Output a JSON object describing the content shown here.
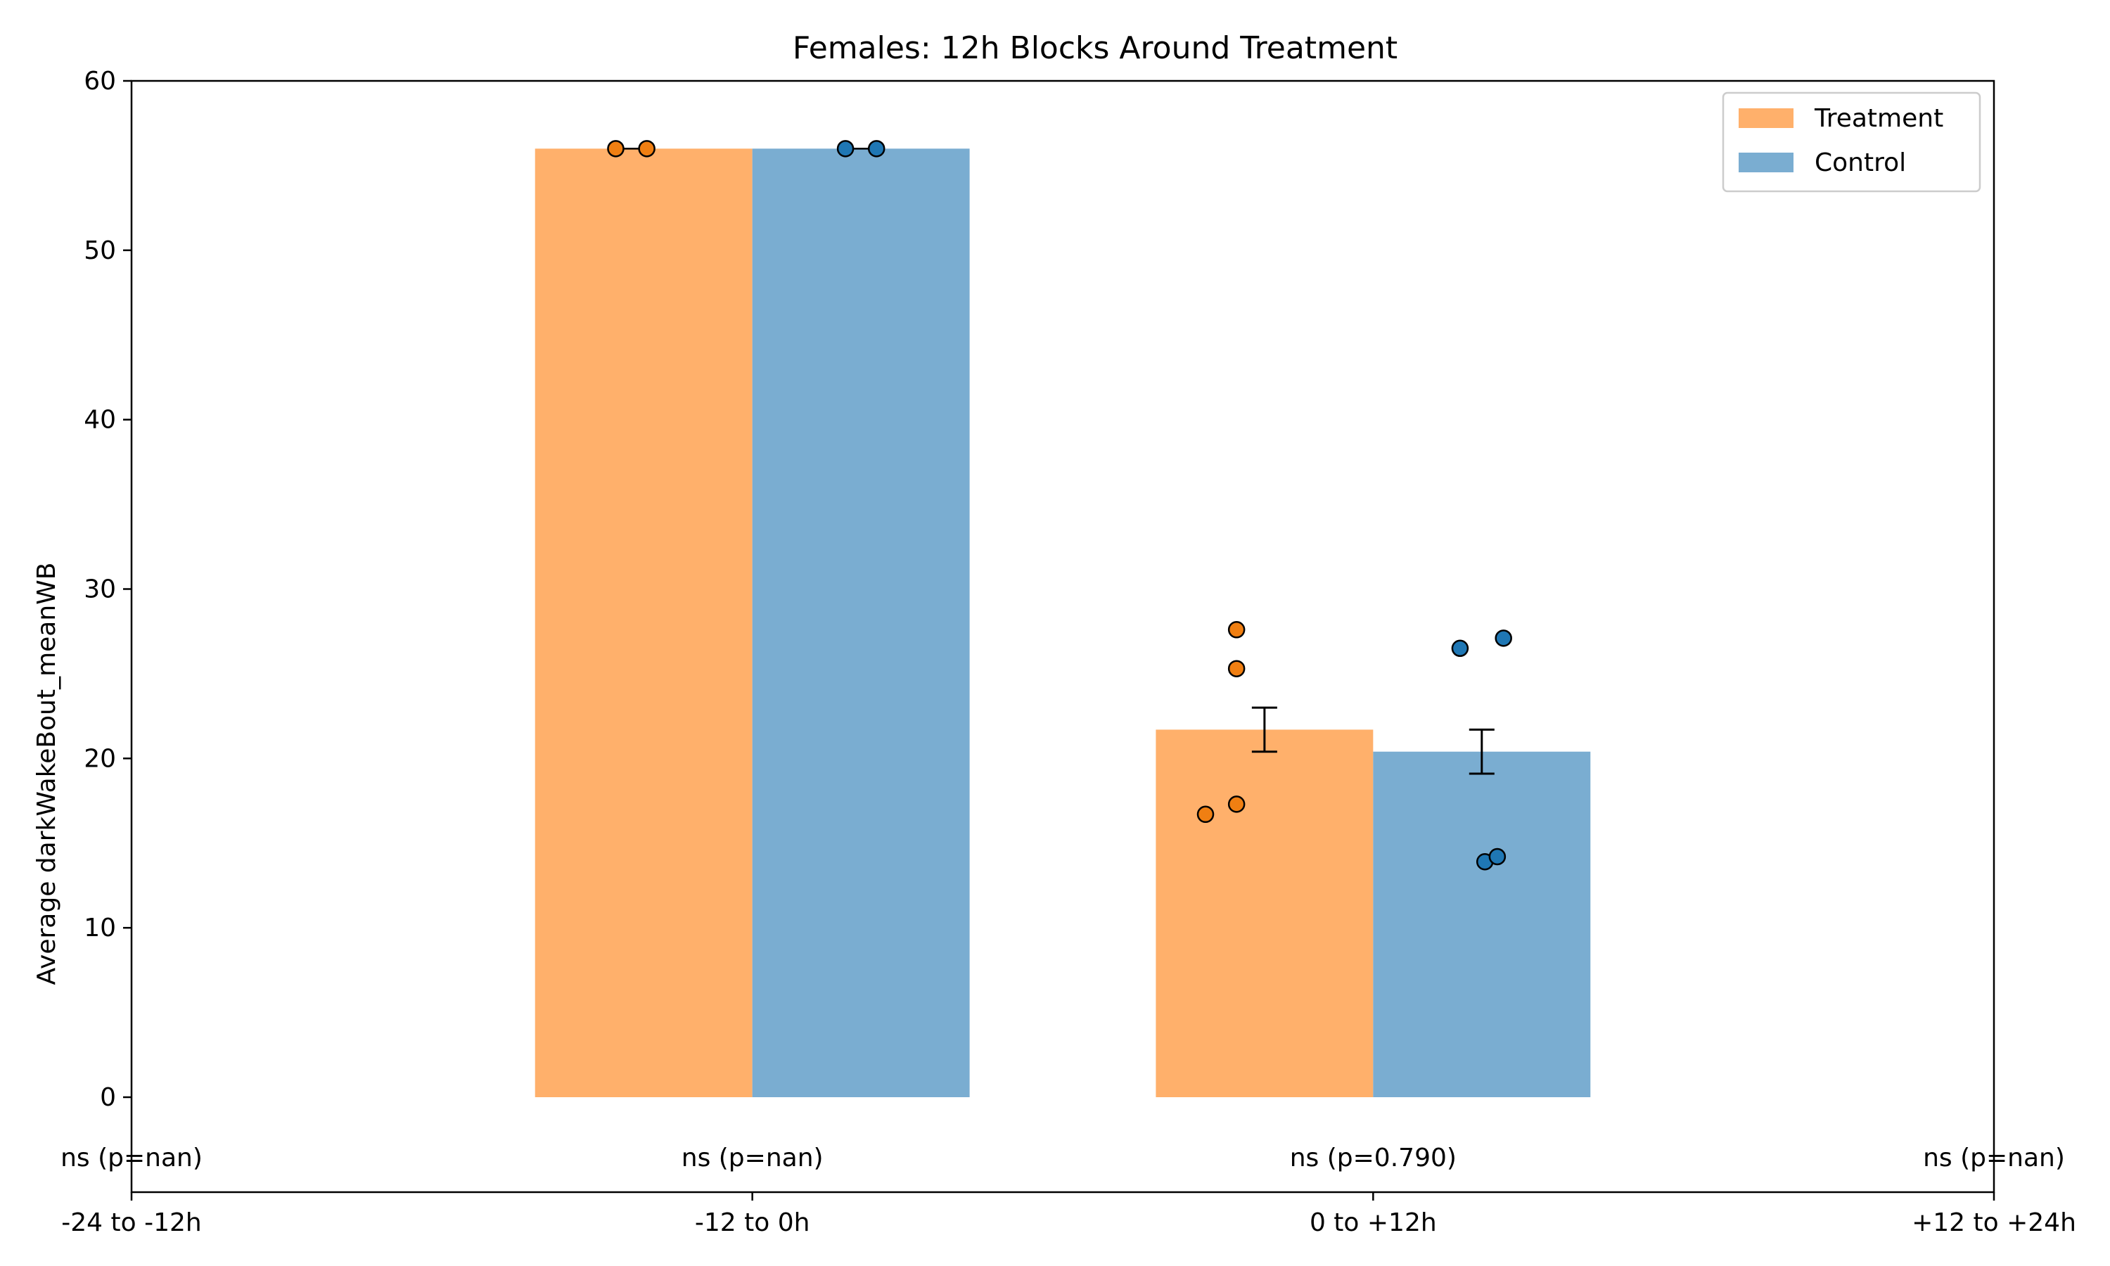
{
  "chart_data": {
    "type": "bar",
    "title": "Females: 12h Blocks Around Treatment",
    "ylabel": "Average darkWakeBout_meanWB",
    "xlabel": "",
    "ylim": [
      0,
      60
    ],
    "yticks": [
      0,
      10,
      20,
      30,
      40,
      50,
      60
    ],
    "x_range": [
      -0.5,
      2.5
    ],
    "categories": [
      "-24 to -12h",
      "-12 to 0h",
      "0 to +12h",
      "+12 to +24h"
    ],
    "category_positions": [
      -0.5,
      0.5,
      1.5,
      2.5
    ],
    "legend_position": "top-right",
    "grid": false,
    "series": [
      {
        "name": "Treatment",
        "bar_color": "#ffb06b",
        "point_color": "#f07f12",
        "bars": [
          {
            "center": 0.325,
            "value": 56.0,
            "error": null
          },
          {
            "center": 1.325,
            "value": 21.7,
            "error": 1.3
          }
        ],
        "points": [
          {
            "x": 0.28,
            "y": 56.0
          },
          {
            "x": 0.33,
            "y": 56.0
          },
          {
            "x": 1.23,
            "y": 16.7
          },
          {
            "x": 1.28,
            "y": 17.3
          },
          {
            "x": 1.28,
            "y": 25.3
          },
          {
            "x": 1.28,
            "y": 27.6
          }
        ]
      },
      {
        "name": "Control",
        "bar_color": "#7aadd1",
        "point_color": "#1f77b4",
        "bars": [
          {
            "center": 0.675,
            "value": 56.0,
            "error": null
          },
          {
            "center": 1.675,
            "value": 20.4,
            "error": 1.3
          }
        ],
        "points": [
          {
            "x": 0.65,
            "y": 56.0
          },
          {
            "x": 0.7,
            "y": 56.0
          },
          {
            "x": 1.64,
            "y": 26.5
          },
          {
            "x": 1.68,
            "y": 13.9
          },
          {
            "x": 1.7,
            "y": 14.2
          },
          {
            "x": 1.71,
            "y": 27.1
          }
        ]
      }
    ],
    "bar_width": 0.35,
    "annotations": [
      {
        "text": "ns (p=nan)",
        "x": -0.5
      },
      {
        "text": "ns (p=nan)",
        "x": 0.5
      },
      {
        "text": "ns (p=0.790)",
        "x": 1.5
      },
      {
        "text": "ns (p=nan)",
        "x": 2.5
      }
    ]
  }
}
